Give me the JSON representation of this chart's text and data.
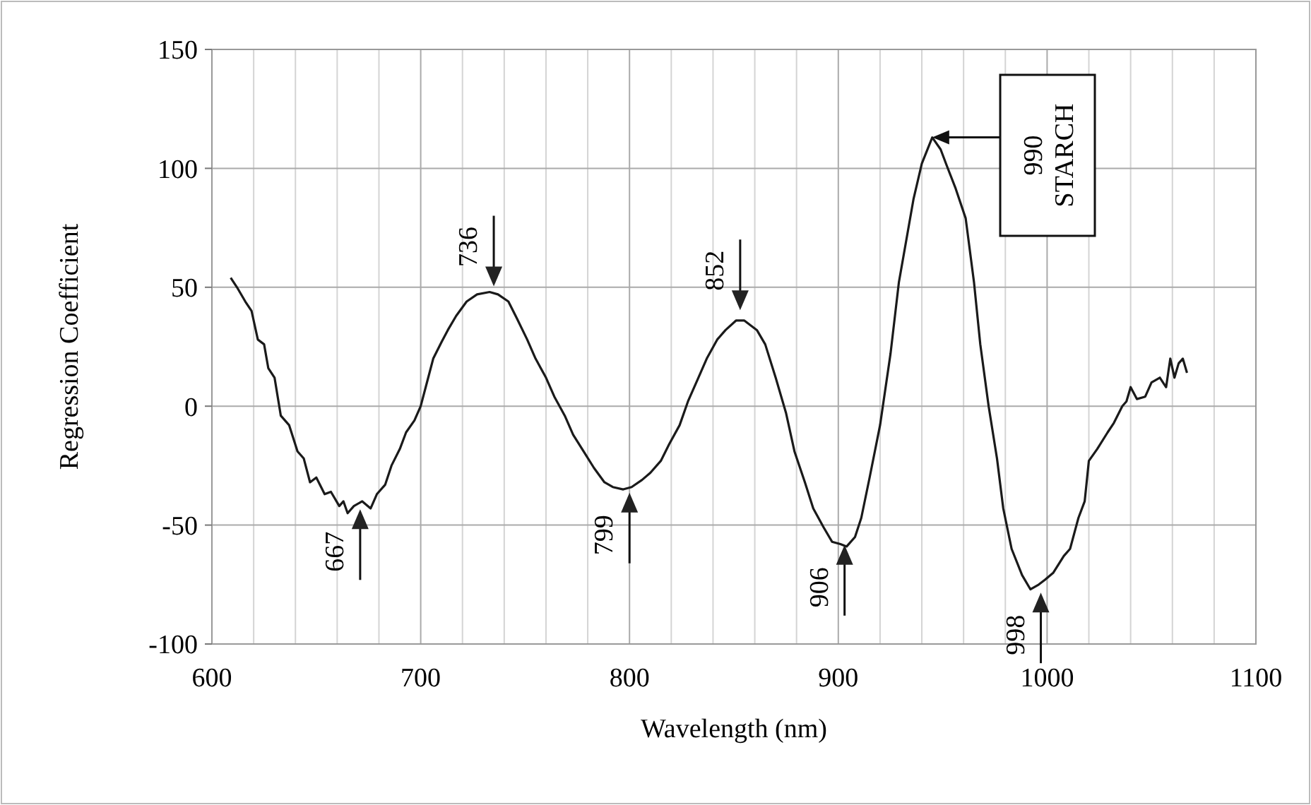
{
  "chart_data": {
    "type": "line",
    "xlabel": "Wavelength  (nm)",
    "ylabel": "Regression Coefficient",
    "xlim": [
      600,
      1100
    ],
    "ylim": [
      -100,
      150
    ],
    "xticks": [
      600,
      {
        "value": 620,
        "label": null
      },
      {
        "value": 640,
        "label": null
      },
      {
        "value": 660,
        "label": null
      },
      {
        "value": 680,
        "label": null
      },
      700,
      {
        "value": 720,
        "label": null
      },
      {
        "value": 740,
        "label": null
      },
      {
        "value": 760,
        "label": null
      },
      {
        "value": 780,
        "label": null
      },
      800,
      {
        "value": 820,
        "label": null
      },
      {
        "value": 840,
        "label": null
      },
      {
        "value": 860,
        "label": null
      },
      {
        "value": 880,
        "label": null
      },
      900,
      {
        "value": 920,
        "label": null
      },
      {
        "value": 940,
        "label": null
      },
      {
        "value": 960,
        "label": null
      },
      {
        "value": 980,
        "label": null
      },
      1000,
      {
        "value": 1020,
        "label": null
      },
      {
        "value": 1040,
        "label": null
      },
      {
        "value": 1060,
        "label": null
      },
      {
        "value": 1080,
        "label": null
      },
      1100
    ],
    "yticks": [
      -100,
      -50,
      0,
      50,
      100,
      150
    ],
    "grid": true,
    "marker": "none",
    "line_style": "solid",
    "series": [
      {
        "color": "#1a1a1a",
        "x": [
          609,
          612,
          616,
          619,
          622,
          625,
          627,
          630,
          633,
          637,
          641,
          644,
          647,
          650,
          654,
          657,
          661,
          663,
          665,
          668,
          672,
          676,
          679,
          683,
          686,
          690,
          693,
          697,
          700,
          703,
          706,
          710,
          713,
          717,
          722,
          727,
          733,
          737,
          742,
          746,
          751,
          755,
          760,
          764,
          769,
          773,
          778,
          783,
          788,
          792,
          797,
          801,
          806,
          810,
          815,
          819,
          824,
          828,
          833,
          837,
          842,
          846,
          851,
          855,
          858,
          861,
          865,
          870,
          875,
          879,
          884,
          888,
          893,
          897,
          901,
          904,
          908,
          911,
          915,
          920,
          925,
          929,
          933,
          936,
          940,
          945,
          949,
          952,
          956,
          961,
          965,
          968,
          972,
          976,
          979,
          983,
          988,
          992,
          996,
          999,
          1003,
          1008,
          1011,
          1015,
          1018,
          1020,
          1024,
          1029,
          1032,
          1036,
          1038,
          1040,
          1043,
          1047,
          1050,
          1054,
          1057,
          1059,
          1061,
          1063,
          1065,
          1067
        ],
        "values": [
          54,
          50,
          44,
          40,
          28,
          26,
          16,
          12,
          -4,
          -8,
          -19,
          -22,
          -32,
          -30,
          -37,
          -36,
          -42,
          -40,
          -45,
          -42,
          -40,
          -43,
          -37,
          -33,
          -25,
          -18,
          -11,
          -6,
          0,
          10,
          20,
          27,
          32,
          38,
          44,
          47,
          48,
          47,
          44,
          37,
          28,
          20,
          12,
          4,
          -4,
          -12,
          -19,
          -26,
          -32,
          -34,
          -35,
          -34,
          -31,
          -28,
          -23,
          -16,
          -8,
          2,
          12,
          20,
          28,
          32,
          36,
          36,
          34,
          32,
          26,
          12,
          -3,
          -19,
          -32,
          -43,
          -51,
          -57,
          -58,
          -59,
          -55,
          -47,
          -30,
          -8,
          22,
          52,
          72,
          87,
          102,
          113,
          108,
          101,
          92,
          79,
          52,
          26,
          0,
          -22,
          -43,
          -60,
          -71,
          -77,
          -75,
          -73,
          -70,
          -63,
          -60,
          -47,
          -40,
          -23,
          -18,
          -11,
          -7,
          0,
          2,
          8,
          3,
          4,
          10,
          12,
          8,
          20,
          12,
          18,
          20,
          14
        ]
      }
    ],
    "annotations": [
      {
        "text": "736",
        "x": 735,
        "y": 48
      },
      {
        "text": "852",
        "x": 853,
        "y": 38
      },
      {
        "text": "667",
        "x": 671,
        "y": -41
      },
      {
        "text": "799",
        "x": 800,
        "y": -34
      },
      {
        "text": "906",
        "x": 903,
        "y": -56
      },
      {
        "text": "998",
        "x": 997,
        "y": -76
      },
      "990\nSTARCH"
    ]
  }
}
